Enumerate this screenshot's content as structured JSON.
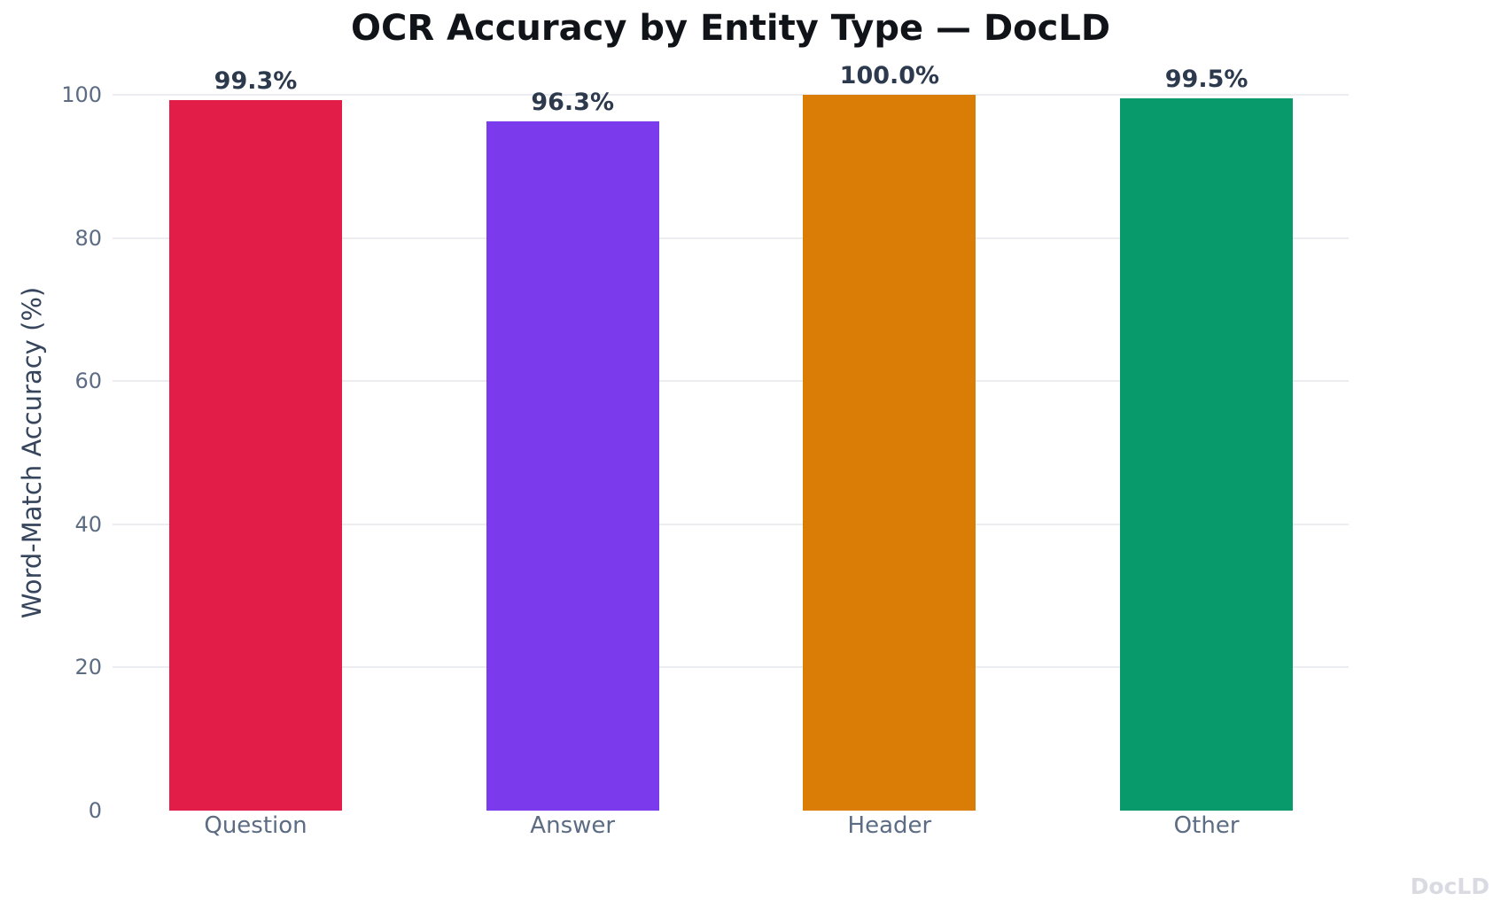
{
  "chart_data": {
    "type": "bar",
    "title": "OCR Accuracy by Entity Type — DocLD",
    "categories": [
      "Question",
      "Answer",
      "Header",
      "Other"
    ],
    "values": [
      99.3,
      96.3,
      100.0,
      99.5
    ],
    "value_labels": [
      "99.3%",
      "96.3%",
      "100.0%",
      "99.5%"
    ],
    "bar_colors": [
      "#e11d48",
      "#7c3aed",
      "#d97d07",
      "#099a6c"
    ],
    "xlabel": "",
    "ylabel": "Word-Match Accuracy (%)",
    "ylim": [
      0,
      100
    ],
    "yticks": [
      0,
      20,
      40,
      60,
      80,
      100
    ],
    "grid": true,
    "legend": false,
    "watermark": "DocLD"
  },
  "text_colors": {
    "title": "#101318",
    "axis_title": "#36455c",
    "tick_labels": "#5c6c83",
    "value_labels": "#2d3a4d",
    "watermark": "#d9dae2",
    "gridline": "#ecedf1"
  }
}
